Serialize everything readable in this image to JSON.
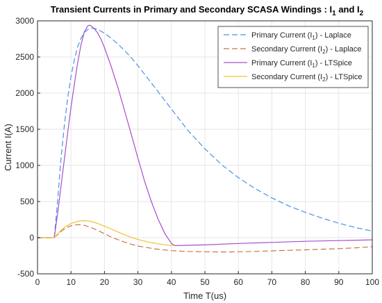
{
  "chart_data": {
    "type": "line",
    "title": "Transient Currents in Primary and Secondary SCASA Windings : I1 and I2",
    "title_parts": {
      "main": "Transient Currents in Primary and Secondary SCASA Windings : I",
      "sub1": "1",
      "mid": " and I",
      "sub2": "2"
    },
    "xlabel": "Time T(us)",
    "ylabel": "Current I(A)",
    "xlim": [
      0,
      100
    ],
    "ylim": [
      -500,
      3000
    ],
    "xticks": [
      0,
      10,
      20,
      30,
      40,
      50,
      60,
      70,
      80,
      90,
      100
    ],
    "yticks": [
      -500,
      0,
      500,
      1000,
      1500,
      2000,
      2500,
      3000
    ],
    "grid": true,
    "legend_position": "top-right",
    "series": [
      {
        "name": "Primary Current (I1) - Laplace",
        "legend_parts": [
          "Primary Current (I",
          "1",
          ") - Laplace"
        ],
        "color": "#4a90e2",
        "style": "dashed",
        "x": [
          0,
          4,
          5,
          6,
          7,
          8,
          9,
          10,
          11,
          12,
          13,
          14,
          15,
          16,
          17,
          18,
          19,
          20,
          22,
          24,
          26,
          28,
          30,
          33,
          36,
          40,
          45,
          50,
          55,
          60,
          65,
          70,
          75,
          80,
          85,
          90,
          95,
          100
        ],
        "y": [
          0,
          0,
          0,
          500,
          1080,
          1550,
          1930,
          2230,
          2460,
          2640,
          2760,
          2840,
          2880,
          2900,
          2895,
          2880,
          2855,
          2830,
          2760,
          2680,
          2590,
          2490,
          2380,
          2200,
          2020,
          1780,
          1480,
          1230,
          1010,
          830,
          680,
          550,
          440,
          350,
          270,
          200,
          140,
          90
        ]
      },
      {
        "name": "Secondary Current (I2) - Laplace",
        "legend_parts": [
          "Secondary Current (I",
          "2",
          ") - Laplace"
        ],
        "color": "#c7734a",
        "style": "dashed",
        "x": [
          0,
          5,
          6,
          7,
          8,
          9,
          10,
          11,
          12,
          13,
          14,
          16,
          18,
          20,
          22,
          25,
          28,
          30,
          35,
          40,
          45,
          50,
          55,
          60,
          65,
          70,
          75,
          80,
          85,
          90,
          95,
          100
        ],
        "y": [
          0,
          0,
          40,
          85,
          120,
          145,
          165,
          175,
          180,
          178,
          170,
          140,
          100,
          55,
          10,
          -45,
          -90,
          -115,
          -155,
          -180,
          -190,
          -195,
          -198,
          -195,
          -190,
          -183,
          -175,
          -168,
          -160,
          -152,
          -140,
          -125
        ]
      },
      {
        "name": "Primary Current (I1) - LTSpice",
        "legend_parts": [
          "Primary Current (I",
          "1",
          ") - LTSpice"
        ],
        "color": "#a64dcc",
        "style": "solid",
        "x": [
          0,
          5,
          6,
          7,
          8,
          9,
          10,
          11,
          12,
          13,
          14,
          15,
          15.5,
          16,
          17,
          18,
          19,
          20,
          22,
          24,
          26,
          28,
          30,
          32,
          34,
          36,
          38,
          40,
          41,
          50,
          60,
          70,
          80,
          90,
          100
        ],
        "y": [
          0,
          0,
          330,
          700,
          1080,
          1450,
          1800,
          2120,
          2420,
          2670,
          2850,
          2930,
          2940,
          2930,
          2890,
          2830,
          2740,
          2630,
          2370,
          2080,
          1760,
          1430,
          1100,
          780,
          500,
          260,
          60,
          -80,
          -110,
          -100,
          -80,
          -65,
          -50,
          -40,
          -30
        ]
      },
      {
        "name": "Secondary Current (I2) - LTSpice",
        "legend_parts": [
          "Secondary Current (I",
          "2",
          ") - LTSpice"
        ],
        "color": "#f2c12e",
        "style": "solid",
        "x": [
          0,
          5,
          6,
          7,
          8,
          9,
          10,
          11,
          12,
          13,
          14,
          15,
          16,
          17,
          18,
          20,
          22,
          25,
          28,
          30,
          33,
          36,
          38,
          40,
          41
        ],
        "y": [
          0,
          0,
          50,
          100,
          140,
          170,
          195,
          212,
          225,
          232,
          235,
          233,
          225,
          212,
          195,
          160,
          120,
          60,
          5,
          -25,
          -60,
          -85,
          -98,
          -108,
          -110
        ]
      }
    ]
  }
}
